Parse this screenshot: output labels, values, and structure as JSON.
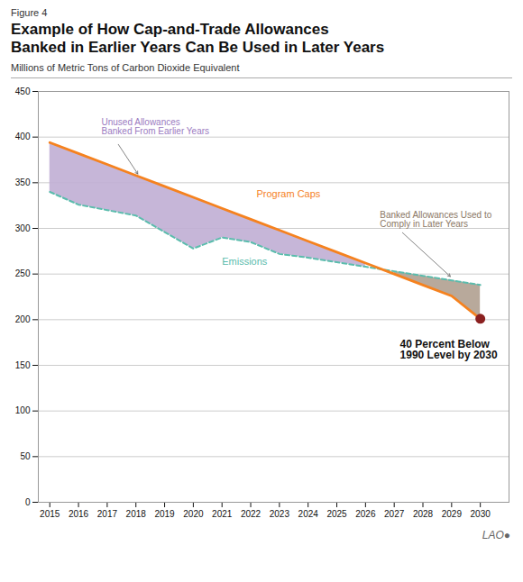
{
  "chart_data": {
    "type": "line",
    "figure_label": "Figure 4",
    "title": "Example of How Cap-and-Trade Allowances\nBanked in Earlier Years Can Be Used in Later Years",
    "subtitle": "Millions of Metric Tons of Carbon Dioxide Equivalent",
    "caption": "LAO●",
    "x": [
      2015,
      2016,
      2017,
      2018,
      2019,
      2020,
      2021,
      2022,
      2023,
      2024,
      2025,
      2026,
      2027,
      2028,
      2029,
      2030
    ],
    "xlim": [
      2014.6,
      2031.0
    ],
    "xticks": [
      2015,
      2016,
      2017,
      2018,
      2019,
      2020,
      2021,
      2022,
      2023,
      2024,
      2025,
      2026,
      2027,
      2028,
      2029,
      2030
    ],
    "ylim": [
      0,
      450
    ],
    "yticks": [
      0,
      50,
      100,
      150,
      200,
      250,
      300,
      350,
      400,
      450
    ],
    "grid": true,
    "series": [
      {
        "name": "Program Caps",
        "color": "#f5821f",
        "line_style": "solid",
        "fill_color": "#c0aed4",
        "label_x": 2022.2,
        "label_y": 338,
        "values": [
          394,
          382,
          370,
          358,
          346,
          334,
          322,
          310,
          298,
          286,
          274,
          262,
          250,
          238,
          226,
          201
        ]
      },
      {
        "name": "Emissions",
        "color": "#5bbcad",
        "line_style": "dashed",
        "fill_color": "#b0a090",
        "label_x": 2021.0,
        "label_y": 264,
        "values": [
          340,
          326,
          320,
          314,
          296,
          278,
          290,
          285,
          272,
          268,
          263,
          258,
          253,
          248,
          243,
          238
        ]
      }
    ],
    "highlight": {
      "x": 2030,
      "y": 201,
      "color": "#8b2020",
      "label": "40 Percent Below\n1990 Level by 2030",
      "label_x": 2027.2,
      "label_y": 178
    },
    "annotations": [
      {
        "text": "Unused Allowances\nBanked From Earlier Years",
        "x": 2016.8,
        "y": 420,
        "color": "#9b7bbf",
        "arrow_x": 2018.1,
        "arrow_y": 358,
        "arrow_color": "#666666"
      },
      {
        "text": "Banked Allowances Used to\nComply in Later Years",
        "x": 2026.5,
        "y": 318,
        "color": "#8b7765",
        "arrow_x": 2029.0,
        "arrow_y": 246,
        "arrow_color": "#666666"
      }
    ]
  }
}
